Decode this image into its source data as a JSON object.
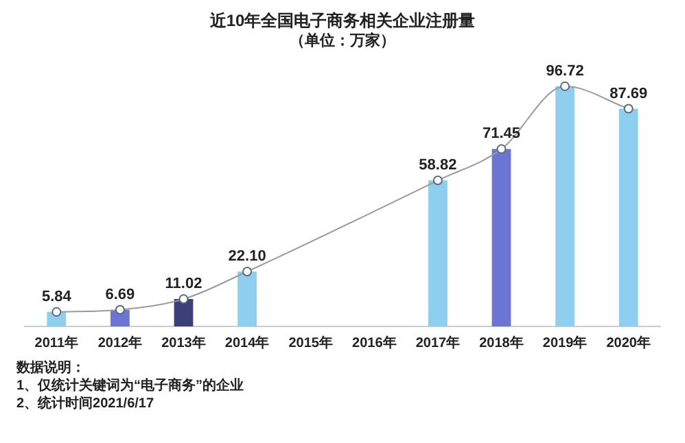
{
  "chart_data": {
    "type": "bar",
    "title": "近10年全国电子商务相关企业注册量",
    "subtitle": "（单位：万家）",
    "categories": [
      "2011年",
      "2012年",
      "2013年",
      "2014年",
      "2015年",
      "2016年",
      "2017年",
      "2018年",
      "2019年",
      "2020年"
    ],
    "series": [
      {
        "colors": [
          "#8ecfef",
          "#6b76d4",
          "#3c4079",
          "#8ecfef",
          "#6b76d4",
          "#3c4079",
          "#8ecfef",
          "#6b76d4",
          "#8ecfef",
          "#8ecfef"
        ],
        "values": [
          5.84,
          6.69,
          11.02,
          22.1,
          null,
          null,
          58.82,
          71.45,
          96.72,
          87.69
        ]
      },
      {
        "type": "line",
        "color": "#9a9a9a",
        "marker": "circle",
        "values": [
          5.84,
          6.69,
          11.02,
          22.1,
          null,
          null,
          58.82,
          71.45,
          96.72,
          87.69
        ],
        "value_labels": [
          "5.84",
          "6.69",
          "11.02",
          "22.10",
          null,
          null,
          "58.82",
          "71.45",
          "96.72",
          "87.69"
        ]
      }
    ],
    "grid": false,
    "legend": false,
    "annotations": [
      "数据说明：",
      "1、仅统计关键词为“电子商务”的企业",
      "2、统计时间2021/6/17"
    ]
  }
}
